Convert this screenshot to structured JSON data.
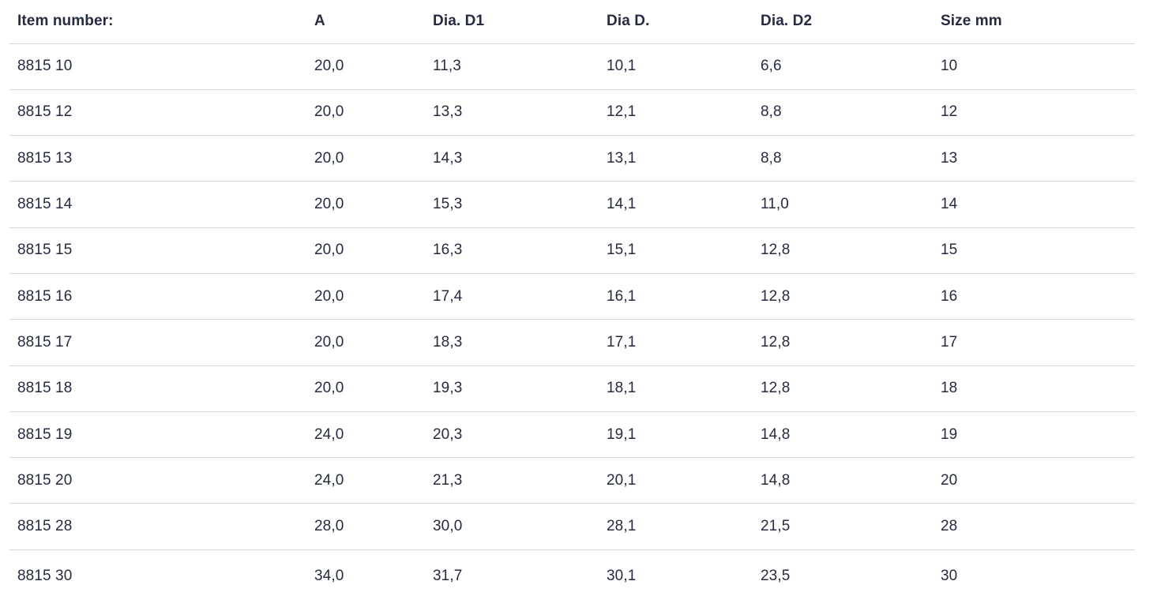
{
  "colors": {
    "text": "#252b41",
    "divider": "#d8d8d8",
    "background": "#ffffff"
  },
  "table": {
    "columns": [
      {
        "key": "item_number",
        "label": "Item number:"
      },
      {
        "key": "a",
        "label": "A"
      },
      {
        "key": "dia_d1",
        "label": "Dia. D1"
      },
      {
        "key": "dia_d",
        "label": "Dia D."
      },
      {
        "key": "dia_d2",
        "label": "Dia. D2"
      },
      {
        "key": "size_mm",
        "label": "Size mm"
      }
    ],
    "rows": [
      {
        "item_number": "8815 10",
        "a": "20,0",
        "dia_d1": "11,3",
        "dia_d": "10,1",
        "dia_d2": "6,6",
        "size_mm": "10"
      },
      {
        "item_number": "8815 12",
        "a": "20,0",
        "dia_d1": "13,3",
        "dia_d": "12,1",
        "dia_d2": "8,8",
        "size_mm": "12"
      },
      {
        "item_number": "8815 13",
        "a": "20,0",
        "dia_d1": "14,3",
        "dia_d": "13,1",
        "dia_d2": "8,8",
        "size_mm": "13"
      },
      {
        "item_number": "8815 14",
        "a": "20,0",
        "dia_d1": "15,3",
        "dia_d": "14,1",
        "dia_d2": "11,0",
        "size_mm": "14"
      },
      {
        "item_number": "8815 15",
        "a": "20,0",
        "dia_d1": "16,3",
        "dia_d": "15,1",
        "dia_d2": "12,8",
        "size_mm": "15"
      },
      {
        "item_number": "8815 16",
        "a": "20,0",
        "dia_d1": "17,4",
        "dia_d": "16,1",
        "dia_d2": "12,8",
        "size_mm": "16"
      },
      {
        "item_number": "8815 17",
        "a": "20,0",
        "dia_d1": "18,3",
        "dia_d": "17,1",
        "dia_d2": "12,8",
        "size_mm": "17"
      },
      {
        "item_number": "8815 18",
        "a": "20,0",
        "dia_d1": "19,3",
        "dia_d": "18,1",
        "dia_d2": "12,8",
        "size_mm": "18"
      },
      {
        "item_number": "8815 19",
        "a": "24,0",
        "dia_d1": "20,3",
        "dia_d": "19,1",
        "dia_d2": "14,8",
        "size_mm": "19"
      },
      {
        "item_number": "8815 20",
        "a": "24,0",
        "dia_d1": "21,3",
        "dia_d": "20,1",
        "dia_d2": "14,8",
        "size_mm": "20"
      },
      {
        "item_number": "8815 28",
        "a": "28,0",
        "dia_d1": "30,0",
        "dia_d": "28,1",
        "dia_d2": "21,5",
        "size_mm": "28"
      },
      {
        "item_number": "8815 30",
        "a": "34,0",
        "dia_d1": "31,7",
        "dia_d": "30,1",
        "dia_d2": "23,5",
        "size_mm": "30"
      }
    ]
  }
}
